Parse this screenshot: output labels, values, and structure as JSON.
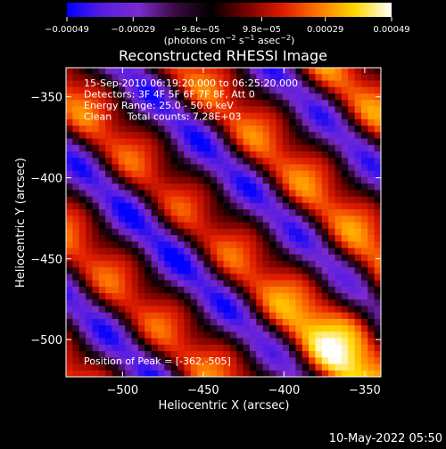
{
  "chart_data": {
    "type": "heatmap",
    "title": "Reconstructed RHESSI Image",
    "xlabel": "Heliocentric X (arcsec)",
    "ylabel": "Heliocentric Y (arcsec)",
    "xlim": [
      -535,
      -340
    ],
    "ylim": [
      -523,
      -332
    ],
    "x_ticks": [
      -500,
      -450,
      -400,
      -350
    ],
    "y_ticks": [
      -350,
      -400,
      -450,
      -500
    ],
    "x_tick_labels": [
      "−500",
      "−450",
      "−400",
      "−350"
    ],
    "y_tick_labels": [
      "−350",
      "−400",
      "−450",
      "−500"
    ],
    "colorbar": {
      "range": [
        -0.00049,
        0.00049
      ],
      "ticks": [
        -0.00049,
        -0.00029,
        -9.8e-05,
        9.8e-05,
        0.00029,
        0.00049
      ],
      "tick_labels": [
        "−0.00049",
        "−0.00029",
        "−9.8e−05",
        "9.8e−05",
        "0.00029",
        "0.00049"
      ],
      "units_main": "(photons cm",
      "units_sup1": "−2",
      "units_mid1": " s",
      "units_sup2": "−1",
      "units_mid2": " asec",
      "units_sup3": "−2",
      "units_end": ")",
      "colormap": [
        "#0000ff",
        "#5a1ee0",
        "#7a2ad0",
        "#3a0a40",
        "#000000",
        "#7a0000",
        "#e01c00",
        "#ff7a00",
        "#ffd800",
        "#ffffff"
      ]
    },
    "annotations": [
      "15-Sep-2010 06:19:20.000 to 06:25:20.000",
      "Detectors: 3F 4F 5F 6F 7F 8F, Att 0",
      "Energy Range: 25.0 - 50.0 keV",
      "Clean     Total counts: 7.28E+03"
    ],
    "peak_label": "Position of Peak = [-362,-505]",
    "peak_position": [
      -362,
      -505
    ],
    "total_counts": "7.28E+03",
    "energy_range_kev": [
      25.0,
      50.0
    ]
  },
  "footer": {
    "timestamp": "10-May-2022 05:50"
  }
}
